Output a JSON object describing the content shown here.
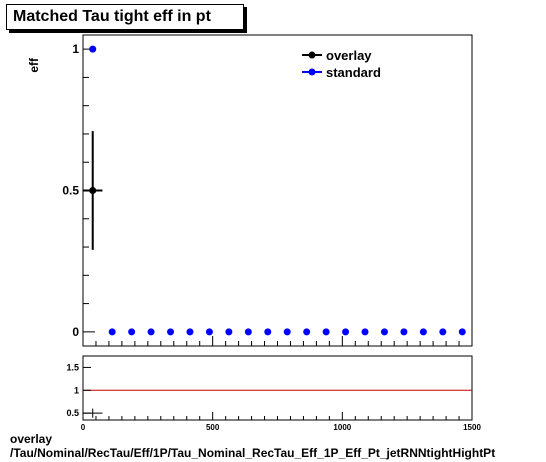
{
  "chart_data": [
    {
      "type": "scatter",
      "title": "Matched Tau tight eff in pt",
      "ylabel": "eff",
      "xlim": [
        0,
        1500
      ],
      "ylim": [
        -0.05,
        1.05
      ],
      "yticks": [
        0,
        0.5,
        1
      ],
      "ytick_labels": [
        "0",
        "0.5",
        "1"
      ],
      "legend": "top-right",
      "series": [
        {
          "name": "overlay",
          "color": "#000000",
          "x": [
            37.5
          ],
          "y": [
            0.5
          ],
          "xerr": [
            37.5
          ],
          "yerr": [
            0.21
          ]
        },
        {
          "name": "standard",
          "color": "#0000ff",
          "x": [
            37.5,
            112.5,
            187.5,
            262.5,
            337.5,
            412.5,
            487.5,
            562.5,
            637.5,
            712.5,
            787.5,
            862.5,
            937.5,
            1012.5,
            1087.5,
            1162.5,
            1237.5,
            1312.5,
            1387.5,
            1462.5
          ],
          "y": [
            1,
            0,
            0,
            0,
            0,
            0,
            0,
            0,
            0,
            0,
            0,
            0,
            0,
            0,
            0,
            0,
            0,
            0,
            0,
            0
          ]
        }
      ]
    },
    {
      "type": "scatter",
      "xlim": [
        0,
        1500
      ],
      "ylim": [
        0.35,
        1.75
      ],
      "xticks": [
        0,
        500,
        1000,
        1500
      ],
      "xtick_labels": [
        "0",
        "500",
        "1000",
        "1500"
      ],
      "yticks": [
        0.5,
        1,
        1.5
      ],
      "ytick_labels": [
        "0.5",
        "1",
        "1.5"
      ],
      "reference_line": 1,
      "reference_color": "#cc0000",
      "points": [
        {
          "x": 37.5,
          "y": 0.5,
          "xerr": 37.5,
          "yerr": 0.1
        }
      ]
    }
  ],
  "footer": {
    "line1": "overlay",
    "line2": "/Tau/Nominal/RecTau/Eff/1P/Tau_Nominal_RecTau_Eff_1P_Eff_Pt_jetRNNtightHightPt"
  }
}
